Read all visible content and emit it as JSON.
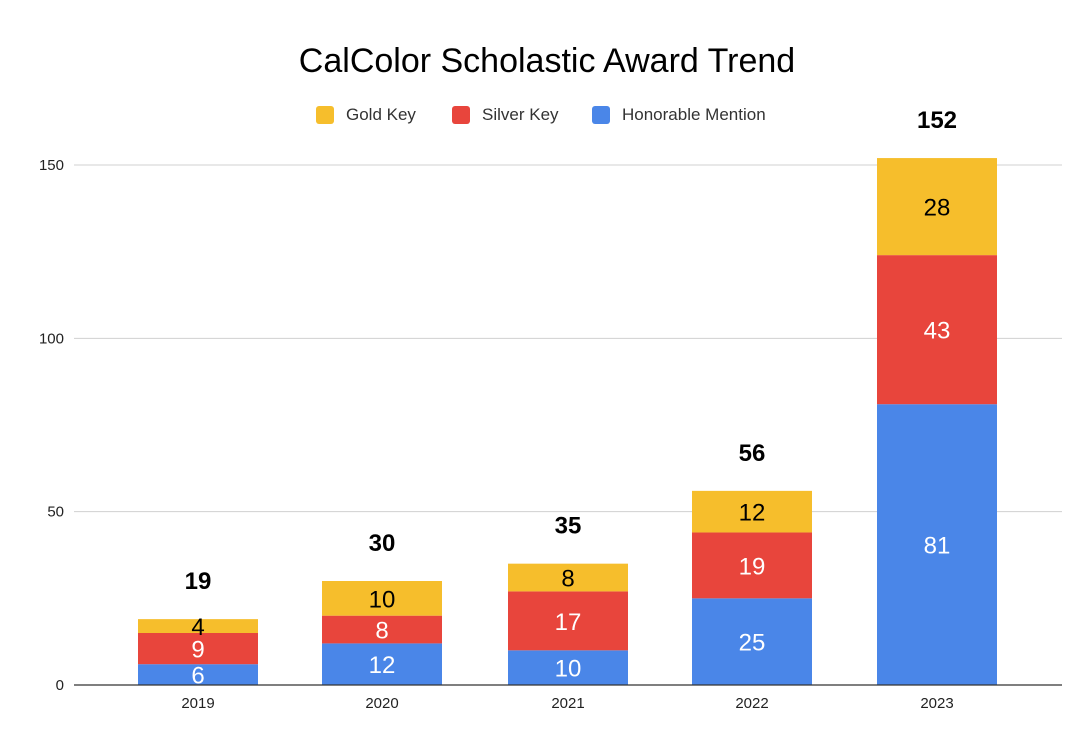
{
  "chart_data": {
    "type": "bar",
    "stacked": true,
    "title": "CalColor Scholastic Award Trend",
    "xlabel": "",
    "ylabel": "",
    "ylim": [
      0,
      150
    ],
    "yticks": [
      "0",
      "50",
      "100",
      "150"
    ],
    "categories": [
      "2019",
      "2020",
      "2021",
      "2022",
      "2023"
    ],
    "series": [
      {
        "name": "Honorable Mention",
        "values": [
          6,
          12,
          10,
          25,
          81
        ],
        "color": "#4A86E8",
        "label_color": "#ffffff"
      },
      {
        "name": "Silver Key",
        "values": [
          9,
          8,
          17,
          19,
          43
        ],
        "color": "#E8453C",
        "label_color": "#ffffff"
      },
      {
        "name": "Gold Key",
        "values": [
          4,
          10,
          8,
          12,
          28
        ],
        "color": "#F6BE2C",
        "label_color": "#000000"
      }
    ],
    "totals": [
      "19",
      "30",
      "35",
      "56",
      "152"
    ],
    "legend": {
      "position": "top",
      "order": [
        "Gold Key",
        "Silver Key",
        "Honorable Mention"
      ]
    },
    "grid": true
  }
}
